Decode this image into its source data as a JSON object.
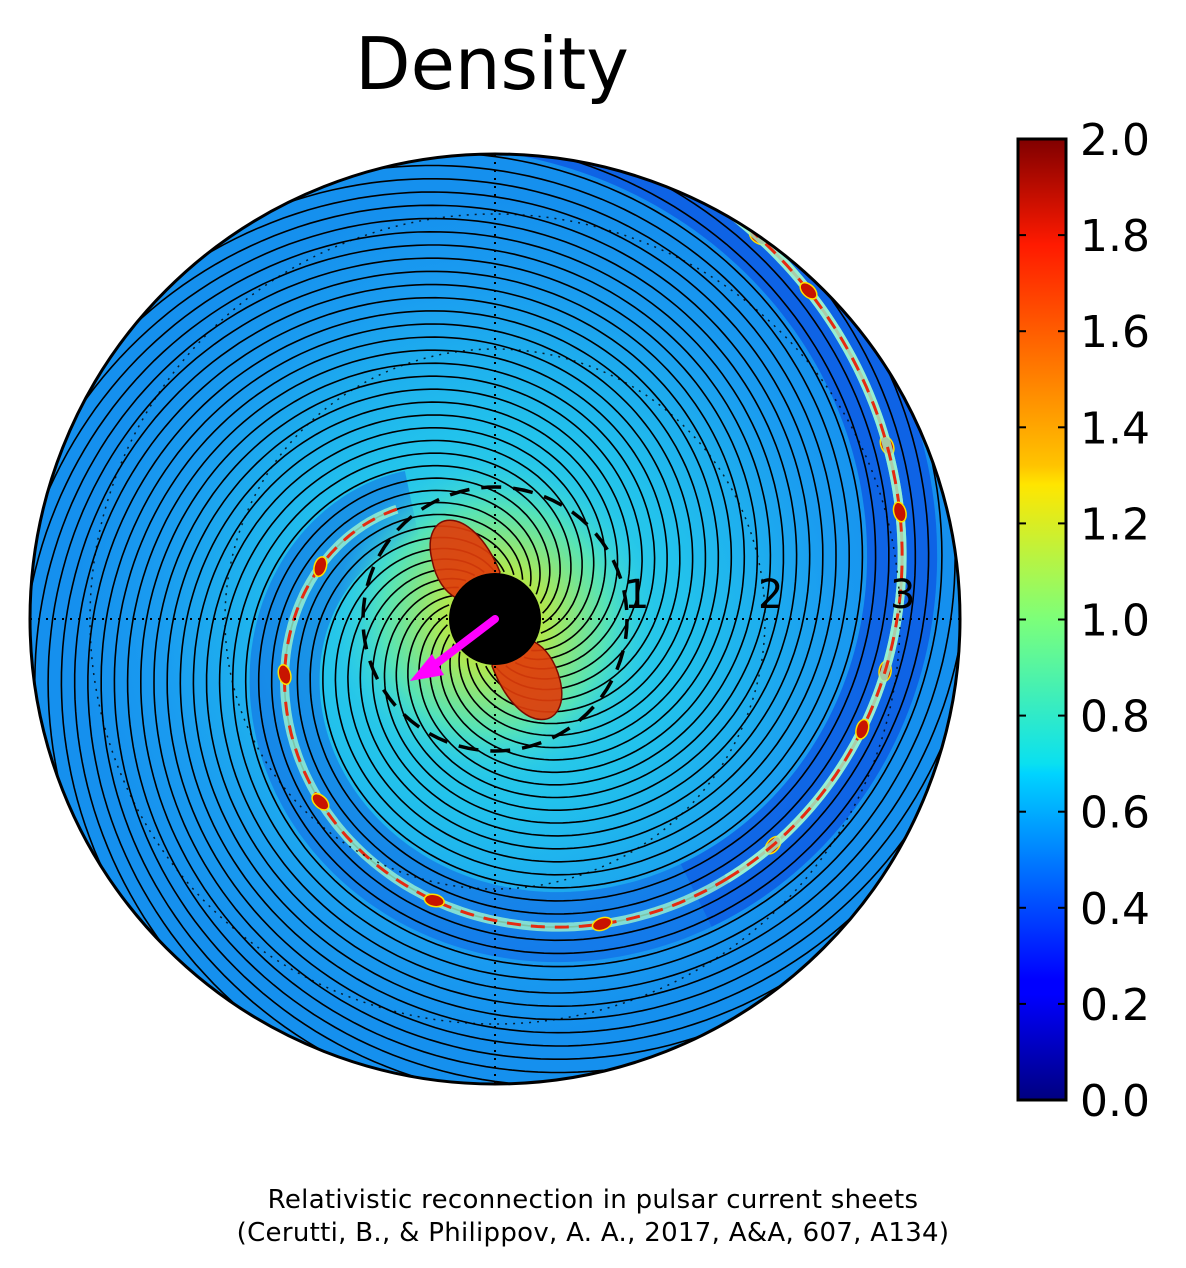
{
  "chart_data": {
    "type": "heatmap",
    "title": "Density",
    "colormap": "jet",
    "colorbar": {
      "min": 0.0,
      "max": 2.0,
      "ticks": [
        "0.0",
        "0.2",
        "0.4",
        "0.6",
        "0.8",
        "1.0",
        "1.2",
        "1.4",
        "1.6",
        "1.8",
        "2.0"
      ]
    },
    "radial_labels": [
      "1",
      "2",
      "3"
    ],
    "light_cylinder_radius": 1,
    "field": "Polar density map with two spiral current sheets and magnetic field lines",
    "magnetic_axis_color": "#ff00ff",
    "caption_line1": "Relativistic reconnection in pulsar current sheets",
    "caption_line2": "(Cerutti, B., & Philippov, A. A., 2017, A&A, 607, A134)"
  }
}
